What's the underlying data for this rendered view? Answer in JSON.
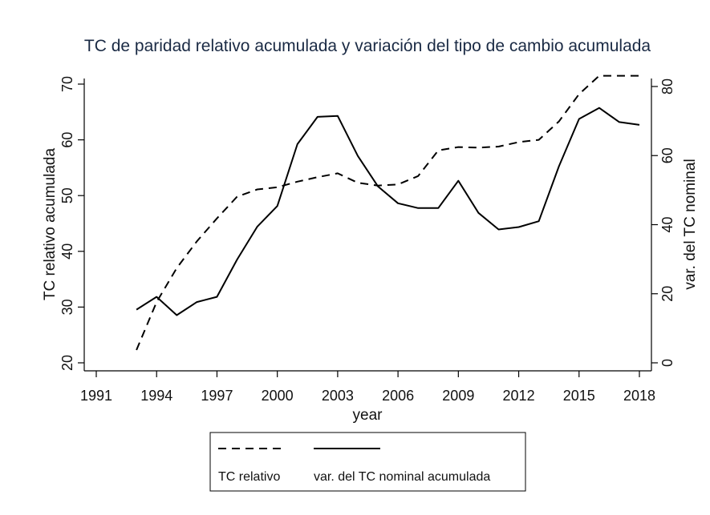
{
  "chart_data": {
    "type": "line",
    "title": "TC de paridad relativo acumulada y variación del tipo de cambio acumulada",
    "xlabel": "year",
    "ylabel_left": "TC relativo acumulada",
    "ylabel_right": "var. del TC nominal",
    "xlim": [
      1991,
      2018
    ],
    "xticks": [
      1991,
      1994,
      1997,
      2000,
      2003,
      2006,
      2009,
      2012,
      2015,
      2018
    ],
    "ylim_left": [
      20,
      70
    ],
    "yticks_left": [
      20,
      30,
      40,
      50,
      60,
      70
    ],
    "ylim_right": [
      0,
      80
    ],
    "yticks_right": [
      0,
      20,
      40,
      60,
      80
    ],
    "grid": false,
    "legend_position": "bottom",
    "series": [
      {
        "name": "TC relativo",
        "axis": "left",
        "style": "dashed",
        "color": "#000000",
        "x": [
          1993,
          1994,
          1995,
          1996,
          1997,
          1998,
          1999,
          2000,
          2001,
          2002,
          2003,
          2004,
          2005,
          2006,
          2007,
          2008,
          2009,
          2010,
          2011,
          2012,
          2013,
          2014,
          2015,
          2016,
          2017,
          2018
        ],
        "y": [
          22.3,
          30.9,
          37.0,
          41.8,
          45.9,
          49.8,
          51.1,
          51.5,
          52.5,
          53.3,
          54.0,
          52.3,
          51.8,
          52.0,
          53.5,
          58.1,
          58.7,
          58.6,
          58.8,
          59.6,
          60.0,
          63.3,
          68.2,
          71.5,
          71.5,
          71.5
        ]
      },
      {
        "name": "var. del TC nominal acumulada",
        "axis": "right",
        "style": "solid",
        "color": "#000000",
        "x": [
          1993,
          1994,
          1995,
          1996,
          1997,
          1998,
          1999,
          2000,
          2001,
          2002,
          2003,
          2004,
          2005,
          2006,
          2007,
          2008,
          2009,
          2010,
          2011,
          2012,
          2013,
          2014,
          2015,
          2016,
          2017,
          2018
        ],
        "y": [
          15.4,
          19.1,
          13.8,
          17.6,
          19.1,
          29.9,
          39.4,
          45.4,
          63.3,
          71.2,
          71.5,
          59.9,
          51.1,
          46.2,
          44.8,
          44.8,
          52.7,
          43.4,
          38.6,
          39.3,
          41.0,
          56.9,
          70.6,
          73.8,
          69.7,
          68.9
        ]
      }
    ]
  }
}
